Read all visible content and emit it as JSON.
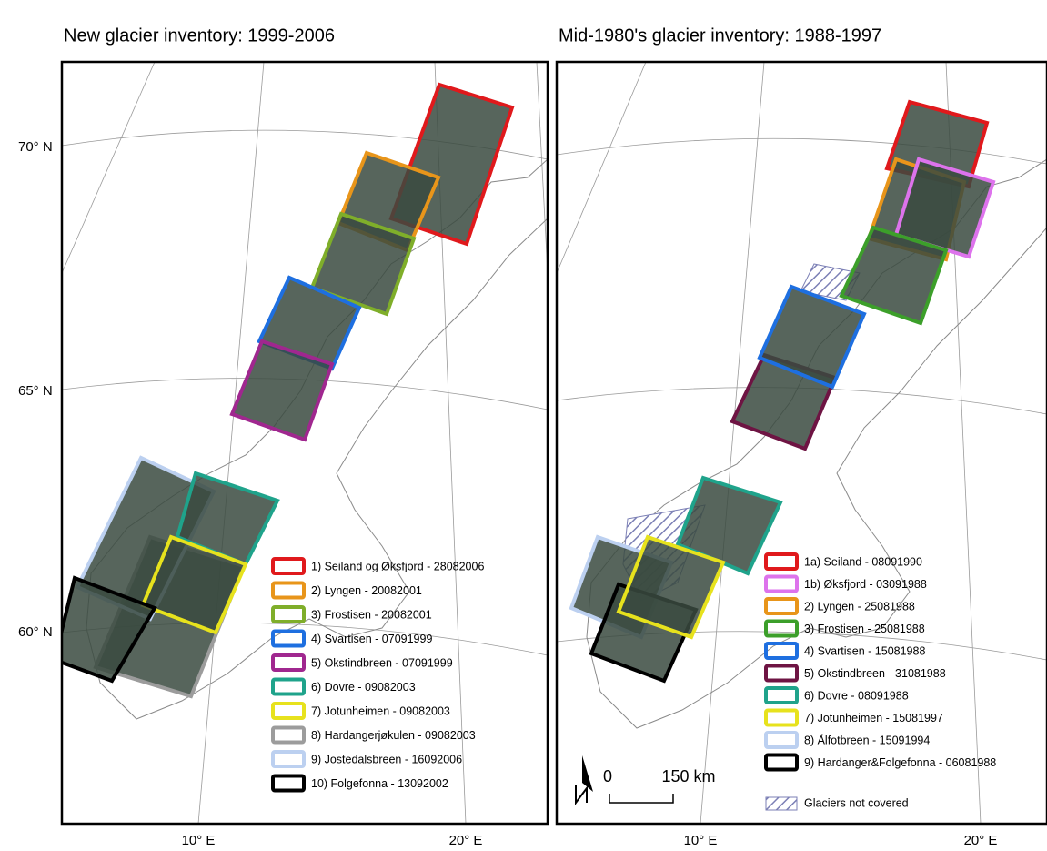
{
  "panels": [
    {
      "title": "New glacier inventory: 1999-2006",
      "latitude_labels": [
        "70° N",
        "65° N",
        "60° N"
      ],
      "longitude_labels": [
        "10° E",
        "20° E"
      ],
      "legend": [
        {
          "label": "1) Seiland og Øksfjord - 28082006",
          "color": "#e0191c"
        },
        {
          "label": "2) Lyngen - 20082001",
          "color": "#e8951a"
        },
        {
          "label": "3) Frostisen - 20082001",
          "color": "#7fae2a"
        },
        {
          "label": "4) Svartisen - 07091999",
          "color": "#1e6fe0"
        },
        {
          "label": "5) Okstindbreen - 07091999",
          "color": "#a0278f"
        },
        {
          "label": "6) Dovre - 09082003",
          "color": "#1fa38b"
        },
        {
          "label": "7) Jotunheimen - 09082003",
          "color": "#e7e21d"
        },
        {
          "label": "8) Hardangerjøkulen - 09082003",
          "color": "#9c9c9c"
        },
        {
          "label": "9) Jostedalsbreen - 16092006",
          "color": "#bcd0f0"
        },
        {
          "label": "10) Folgefonna - 13092002",
          "color": "#000000"
        }
      ]
    },
    {
      "title": "Mid-1980's glacier inventory: 1988-1997",
      "longitude_labels": [
        "10° E",
        "20° E"
      ],
      "scale_bar": {
        "start": "0",
        "end": "150 km"
      },
      "legend": [
        {
          "label": "1a) Seiland - 08091990",
          "color": "#e0191c"
        },
        {
          "label": "1b) Øksfjord - 03091988",
          "color": "#dd73ec"
        },
        {
          "label": "2) Lyngen - 25081988",
          "color": "#e8951a"
        },
        {
          "label": "3) Frostisen - 25081988",
          "color": "#3c9f2a"
        },
        {
          "label": "4) Svartisen - 15081988",
          "color": "#1e6fe0"
        },
        {
          "label": "5) Okstindbreen - 31081988",
          "color": "#6e1443"
        },
        {
          "label": "6) Dovre - 08091988",
          "color": "#1fa38b"
        },
        {
          "label": "7) Jotunheimen - 15081997",
          "color": "#e7e21d"
        },
        {
          "label": "8) Ålfotbreen - 15091994",
          "color": "#bcd0f0"
        },
        {
          "label": "9) Hardanger&Folgefonna - 06081988",
          "color": "#000000"
        }
      ],
      "uncovered_legend": "Glaciers not covered"
    }
  ]
}
